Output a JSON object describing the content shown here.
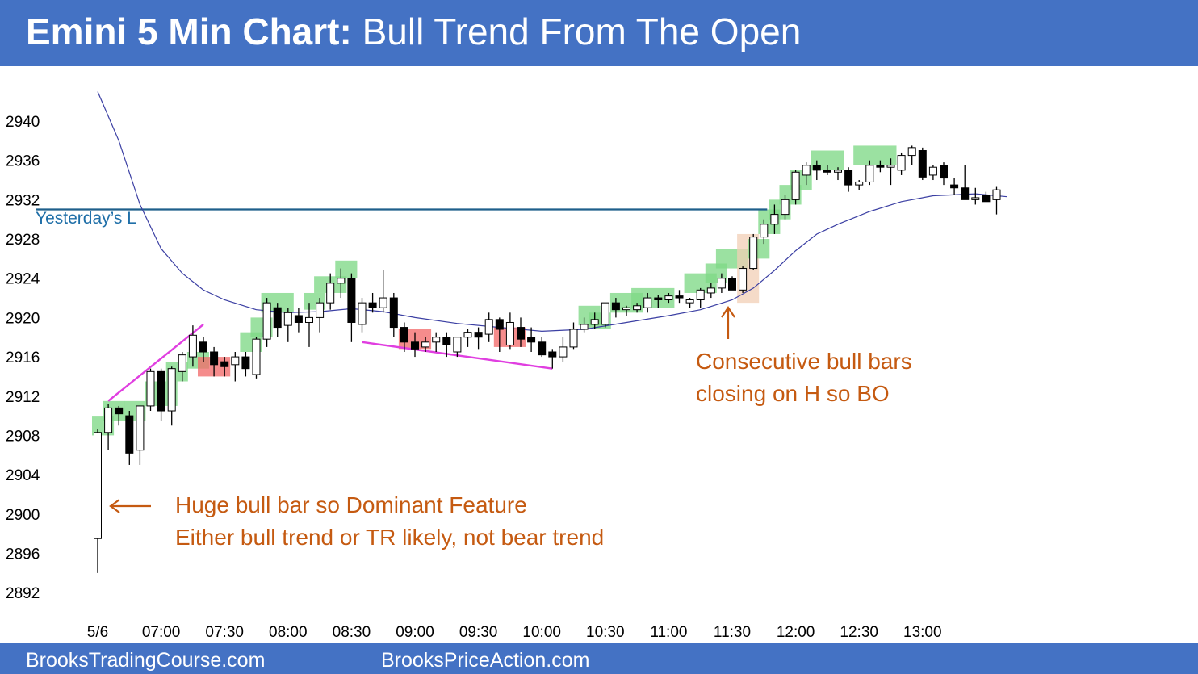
{
  "header": {
    "title_bold": "Emini 5 Min Chart:",
    "title_rest": "Bull Trend From The Open"
  },
  "footer": {
    "left": "BrooksTradingCourse.com",
    "right": "BrooksPriceAction.com"
  },
  "colors": {
    "header_bg": "#4472c4",
    "bull_highlight": "#7fd987",
    "bear_highlight": "#f26b6b",
    "spike_highlight": "#f2cfb5",
    "ema": "#3b3fa3",
    "trendline": "#e03ee0",
    "reference_line": "#1f5f8b",
    "annotation": "#c55a11"
  },
  "annotations": {
    "huge_bar_line1": "Huge bull bar so Dominant Feature",
    "huge_bar_line2": "Either bull trend or TR likely, not bear trend",
    "consecutive_line1": "Consecutive bull bars",
    "consecutive_line2": "closing on H so BO",
    "yesterday_low": "Yesterday’s L"
  },
  "chart_data": {
    "type": "candlestick",
    "title": "Emini 5 Min Chart: Bull Trend From The Open",
    "ylim": [
      2891,
      2942
    ],
    "y_ticks": [
      2892,
      2896,
      2900,
      2904,
      2908,
      2912,
      2916,
      2920,
      2924,
      2928,
      2932,
      2936,
      2940
    ],
    "x_ticks": [
      {
        "label": "5/6",
        "bar": 0
      },
      {
        "label": "07:00",
        "bar": 6
      },
      {
        "label": "07:30",
        "bar": 12
      },
      {
        "label": "08:00",
        "bar": 18
      },
      {
        "label": "08:30",
        "bar": 24
      },
      {
        "label": "09:00",
        "bar": 30
      },
      {
        "label": "09:30",
        "bar": 36
      },
      {
        "label": "10:00",
        "bar": 42
      },
      {
        "label": "10:30",
        "bar": 48
      },
      {
        "label": "11:00",
        "bar": 54
      },
      {
        "label": "11:30",
        "bar": 60
      },
      {
        "label": "12:00",
        "bar": 66
      },
      {
        "label": "12:30",
        "bar": 72
      },
      {
        "label": "13:00",
        "bar": 78
      }
    ],
    "bars": [
      {
        "o": 2897.5,
        "h": 2908.6,
        "l": 2894.0,
        "c": 2908.3
      },
      {
        "o": 2908.3,
        "h": 2911.2,
        "l": 2906.5,
        "c": 2910.8
      },
      {
        "o": 2910.8,
        "h": 2911.0,
        "l": 2909.0,
        "c": 2910.2
      },
      {
        "o": 2910.0,
        "h": 2910.5,
        "l": 2905.0,
        "c": 2906.2
      },
      {
        "o": 2906.5,
        "h": 2911.0,
        "l": 2905.0,
        "c": 2911.0
      },
      {
        "o": 2911.0,
        "h": 2914.8,
        "l": 2910.5,
        "c": 2914.5
      },
      {
        "o": 2914.5,
        "h": 2914.8,
        "l": 2909.5,
        "c": 2910.5
      },
      {
        "o": 2910.5,
        "h": 2915.0,
        "l": 2909.0,
        "c": 2914.8
      },
      {
        "o": 2914.5,
        "h": 2916.5,
        "l": 2913.5,
        "c": 2916.2
      },
      {
        "o": 2916.0,
        "h": 2919.2,
        "l": 2915.0,
        "c": 2918.2
      },
      {
        "o": 2917.5,
        "h": 2918.0,
        "l": 2915.5,
        "c": 2916.5
      },
      {
        "o": 2916.5,
        "h": 2917.0,
        "l": 2914.0,
        "c": 2915.2
      },
      {
        "o": 2915.5,
        "h": 2916.0,
        "l": 2914.0,
        "c": 2915.0
      },
      {
        "o": 2915.2,
        "h": 2916.5,
        "l": 2913.5,
        "c": 2916.0
      },
      {
        "o": 2916.0,
        "h": 2916.5,
        "l": 2914.0,
        "c": 2914.8
      },
      {
        "o": 2914.2,
        "h": 2918.0,
        "l": 2913.8,
        "c": 2917.8
      },
      {
        "o": 2917.8,
        "h": 2922.0,
        "l": 2917.0,
        "c": 2921.5
      },
      {
        "o": 2921.0,
        "h": 2921.5,
        "l": 2918.0,
        "c": 2919.0
      },
      {
        "o": 2919.2,
        "h": 2921.0,
        "l": 2917.5,
        "c": 2920.5
      },
      {
        "o": 2920.2,
        "h": 2921.0,
        "l": 2918.5,
        "c": 2919.5
      },
      {
        "o": 2919.5,
        "h": 2921.5,
        "l": 2917.0,
        "c": 2920.0
      },
      {
        "o": 2920.0,
        "h": 2922.0,
        "l": 2918.5,
        "c": 2921.5
      },
      {
        "o": 2921.5,
        "h": 2924.5,
        "l": 2920.8,
        "c": 2923.5
      },
      {
        "o": 2923.5,
        "h": 2925.0,
        "l": 2922.0,
        "c": 2924.0
      },
      {
        "o": 2924.0,
        "h": 2924.5,
        "l": 2917.5,
        "c": 2919.5
      },
      {
        "o": 2919.3,
        "h": 2922.0,
        "l": 2918.5,
        "c": 2921.5
      },
      {
        "o": 2921.5,
        "h": 2922.5,
        "l": 2920.5,
        "c": 2921.0
      },
      {
        "o": 2921.0,
        "h": 2924.8,
        "l": 2920.5,
        "c": 2922.0
      },
      {
        "o": 2922.0,
        "h": 2922.5,
        "l": 2918.0,
        "c": 2919.0
      },
      {
        "o": 2919.0,
        "h": 2919.5,
        "l": 2916.5,
        "c": 2917.5
      },
      {
        "o": 2917.5,
        "h": 2918.5,
        "l": 2916.0,
        "c": 2916.8
      },
      {
        "o": 2917.0,
        "h": 2918.0,
        "l": 2916.5,
        "c": 2917.5
      },
      {
        "o": 2917.5,
        "h": 2918.5,
        "l": 2916.5,
        "c": 2918.0
      },
      {
        "o": 2918.0,
        "h": 2918.5,
        "l": 2916.0,
        "c": 2917.2
      },
      {
        "o": 2916.5,
        "h": 2918.0,
        "l": 2916.0,
        "c": 2918.0
      },
      {
        "o": 2918.0,
        "h": 2918.8,
        "l": 2917.0,
        "c": 2918.5
      },
      {
        "o": 2918.5,
        "h": 2919.0,
        "l": 2916.8,
        "c": 2918.0
      },
      {
        "o": 2918.3,
        "h": 2920.5,
        "l": 2917.5,
        "c": 2919.8
      },
      {
        "o": 2919.8,
        "h": 2920.0,
        "l": 2916.5,
        "c": 2918.8
      },
      {
        "o": 2917.2,
        "h": 2920.5,
        "l": 2916.8,
        "c": 2919.5
      },
      {
        "o": 2919.0,
        "h": 2920.0,
        "l": 2917.0,
        "c": 2917.8
      },
      {
        "o": 2918.0,
        "h": 2919.0,
        "l": 2916.5,
        "c": 2917.5
      },
      {
        "o": 2917.5,
        "h": 2918.0,
        "l": 2916.0,
        "c": 2916.2
      },
      {
        "o": 2916.5,
        "h": 2916.8,
        "l": 2914.8,
        "c": 2916.0
      },
      {
        "o": 2916.0,
        "h": 2918.0,
        "l": 2915.5,
        "c": 2917.0
      },
      {
        "o": 2917.0,
        "h": 2919.5,
        "l": 2916.8,
        "c": 2918.8
      },
      {
        "o": 2918.8,
        "h": 2920.0,
        "l": 2918.5,
        "c": 2919.3
      },
      {
        "o": 2919.3,
        "h": 2920.5,
        "l": 2918.8,
        "c": 2919.8
      },
      {
        "o": 2919.3,
        "h": 2921.5,
        "l": 2919.0,
        "c": 2921.5
      },
      {
        "o": 2921.5,
        "h": 2922.0,
        "l": 2920.0,
        "c": 2920.8
      },
      {
        "o": 2920.8,
        "h": 2921.2,
        "l": 2920.2,
        "c": 2921.0
      },
      {
        "o": 2920.8,
        "h": 2921.5,
        "l": 2920.5,
        "c": 2921.2
      },
      {
        "o": 2921.0,
        "h": 2922.5,
        "l": 2920.5,
        "c": 2922.0
      },
      {
        "o": 2922.0,
        "h": 2922.3,
        "l": 2921.0,
        "c": 2921.8
      },
      {
        "o": 2921.8,
        "h": 2922.5,
        "l": 2921.5,
        "c": 2922.2
      },
      {
        "o": 2922.2,
        "h": 2922.8,
        "l": 2921.5,
        "c": 2922.0
      },
      {
        "o": 2921.5,
        "h": 2922.0,
        "l": 2921.0,
        "c": 2921.8
      },
      {
        "o": 2921.8,
        "h": 2923.0,
        "l": 2921.0,
        "c": 2922.8
      },
      {
        "o": 2922.5,
        "h": 2923.5,
        "l": 2922.0,
        "c": 2923.0
      },
      {
        "o": 2923.0,
        "h": 2924.5,
        "l": 2922.5,
        "c": 2924.0
      },
      {
        "o": 2924.0,
        "h": 2924.2,
        "l": 2922.8,
        "c": 2922.8
      },
      {
        "o": 2922.8,
        "h": 2925.2,
        "l": 2922.5,
        "c": 2925.0
      },
      {
        "o": 2925.0,
        "h": 2928.5,
        "l": 2924.8,
        "c": 2928.2
      },
      {
        "o": 2928.2,
        "h": 2930.0,
        "l": 2927.5,
        "c": 2929.5
      },
      {
        "o": 2929.5,
        "h": 2931.5,
        "l": 2928.5,
        "c": 2930.5
      },
      {
        "o": 2930.5,
        "h": 2932.5,
        "l": 2930.0,
        "c": 2932.0
      },
      {
        "o": 2932.0,
        "h": 2935.0,
        "l": 2931.5,
        "c": 2934.8
      },
      {
        "o": 2934.5,
        "h": 2935.8,
        "l": 2933.5,
        "c": 2935.5
      },
      {
        "o": 2935.5,
        "h": 2936.0,
        "l": 2934.0,
        "c": 2935.0
      },
      {
        "o": 2935.0,
        "h": 2935.5,
        "l": 2934.5,
        "c": 2934.8
      },
      {
        "o": 2934.8,
        "h": 2935.3,
        "l": 2934.0,
        "c": 2935.0
      },
      {
        "o": 2935.0,
        "h": 2935.3,
        "l": 2932.8,
        "c": 2933.5
      },
      {
        "o": 2933.5,
        "h": 2934.0,
        "l": 2933.0,
        "c": 2933.8
      },
      {
        "o": 2933.8,
        "h": 2936.0,
        "l": 2933.5,
        "c": 2935.5
      },
      {
        "o": 2935.5,
        "h": 2936.0,
        "l": 2934.8,
        "c": 2935.3
      },
      {
        "o": 2935.3,
        "h": 2936.2,
        "l": 2933.5,
        "c": 2935.5
      },
      {
        "o": 2935.0,
        "h": 2936.8,
        "l": 2934.5,
        "c": 2936.5
      },
      {
        "o": 2936.5,
        "h": 2937.5,
        "l": 2935.5,
        "c": 2937.3
      },
      {
        "o": 2937.0,
        "h": 2937.3,
        "l": 2934.0,
        "c": 2934.3
      },
      {
        "o": 2934.5,
        "h": 2935.5,
        "l": 2934.0,
        "c": 2935.3
      },
      {
        "o": 2935.5,
        "h": 2935.8,
        "l": 2933.5,
        "c": 2934.2
      },
      {
        "o": 2933.5,
        "h": 2934.2,
        "l": 2932.5,
        "c": 2933.2
      },
      {
        "o": 2933.2,
        "h": 2935.5,
        "l": 2932.0,
        "c": 2932.0
      },
      {
        "o": 2932.0,
        "h": 2933.2,
        "l": 2931.5,
        "c": 2932.2
      },
      {
        "o": 2932.4,
        "h": 2932.8,
        "l": 2931.8,
        "c": 2931.8
      },
      {
        "o": 2932.0,
        "h": 2933.3,
        "l": 2930.5,
        "c": 2933.0
      }
    ],
    "ema_20": [
      {
        "bar": 0,
        "value": 2943.0
      },
      {
        "bar": 2,
        "value": 2938.0
      },
      {
        "bar": 4,
        "value": 2931.5
      },
      {
        "bar": 6,
        "value": 2927.0
      },
      {
        "bar": 8,
        "value": 2924.5
      },
      {
        "bar": 10,
        "value": 2922.8
      },
      {
        "bar": 12,
        "value": 2921.8
      },
      {
        "bar": 15,
        "value": 2920.8
      },
      {
        "bar": 18,
        "value": 2920.5
      },
      {
        "bar": 21,
        "value": 2920.6
      },
      {
        "bar": 24,
        "value": 2920.9
      },
      {
        "bar": 27,
        "value": 2920.6
      },
      {
        "bar": 30,
        "value": 2920.0
      },
      {
        "bar": 34,
        "value": 2919.4
      },
      {
        "bar": 38,
        "value": 2919.0
      },
      {
        "bar": 42,
        "value": 2918.6
      },
      {
        "bar": 46,
        "value": 2918.8
      },
      {
        "bar": 50,
        "value": 2919.5
      },
      {
        "bar": 54,
        "value": 2920.2
      },
      {
        "bar": 57,
        "value": 2920.8
      },
      {
        "bar": 60,
        "value": 2921.8
      },
      {
        "bar": 62,
        "value": 2923.0
      },
      {
        "bar": 64,
        "value": 2924.8
      },
      {
        "bar": 66,
        "value": 2926.8
      },
      {
        "bar": 68,
        "value": 2928.5
      },
      {
        "bar": 70,
        "value": 2929.5
      },
      {
        "bar": 73,
        "value": 2930.8
      },
      {
        "bar": 76,
        "value": 2931.8
      },
      {
        "bar": 79,
        "value": 2932.4
      },
      {
        "bar": 83,
        "value": 2932.6
      },
      {
        "bar": 86,
        "value": 2932.3
      }
    ],
    "yesterday_low": 2931.0,
    "highlights": [
      {
        "from": 0,
        "to": 1,
        "low": 2908.0,
        "high": 2910.0,
        "kind": "bull"
      },
      {
        "from": 1,
        "to": 2,
        "low": 2909.5,
        "high": 2911.5,
        "kind": "bull"
      },
      {
        "from": 3,
        "to": 4,
        "low": 2909.5,
        "high": 2911.5,
        "kind": "bull"
      },
      {
        "from": 5,
        "to": 7,
        "low": 2911.0,
        "high": 2913.5,
        "kind": "bull"
      },
      {
        "from": 7,
        "to": 8,
        "low": 2913.5,
        "high": 2915.5,
        "kind": "bull"
      },
      {
        "from": 9,
        "to": 10,
        "low": 2914.8,
        "high": 2916.5,
        "kind": "bull"
      },
      {
        "from": 10,
        "to": 12,
        "low": 2914.0,
        "high": 2916.0,
        "kind": "bear"
      },
      {
        "from": 14,
        "to": 15,
        "low": 2916.5,
        "high": 2918.5,
        "kind": "bull"
      },
      {
        "from": 15,
        "to": 16,
        "low": 2918.0,
        "high": 2920.0,
        "kind": "bull"
      },
      {
        "from": 16,
        "to": 18,
        "low": 2920.5,
        "high": 2922.5,
        "kind": "bull"
      },
      {
        "from": 20,
        "to": 21,
        "low": 2920.8,
        "high": 2922.5,
        "kind": "bull"
      },
      {
        "from": 21,
        "to": 23,
        "low": 2922.5,
        "high": 2924.2,
        "kind": "bull"
      },
      {
        "from": 23,
        "to": 24,
        "low": 2924.0,
        "high": 2925.8,
        "kind": "bull"
      },
      {
        "from": 29,
        "to": 31,
        "low": 2916.8,
        "high": 2918.8,
        "kind": "bear"
      },
      {
        "from": 38,
        "to": 40,
        "low": 2917.0,
        "high": 2919.0,
        "kind": "bear"
      },
      {
        "from": 46,
        "to": 47,
        "low": 2919.2,
        "high": 2921.2,
        "kind": "bull"
      },
      {
        "from": 47,
        "to": 48,
        "low": 2918.8,
        "high": 2920.5,
        "kind": "bull"
      },
      {
        "from": 49,
        "to": 51,
        "low": 2920.5,
        "high": 2922.5,
        "kind": "bull"
      },
      {
        "from": 51,
        "to": 54,
        "low": 2921.0,
        "high": 2923.0,
        "kind": "bull"
      },
      {
        "from": 56,
        "to": 58,
        "low": 2922.5,
        "high": 2924.5,
        "kind": "bull"
      },
      {
        "from": 58,
        "to": 59,
        "low": 2923.5,
        "high": 2925.5,
        "kind": "bull"
      },
      {
        "from": 59,
        "to": 61,
        "low": 2925.0,
        "high": 2927.0,
        "kind": "bull"
      },
      {
        "from": 61,
        "to": 62,
        "low": 2921.5,
        "high": 2928.5,
        "kind": "spike"
      },
      {
        "from": 62,
        "to": 63,
        "low": 2926.0,
        "high": 2928.0,
        "kind": "bull"
      },
      {
        "from": 63,
        "to": 64,
        "low": 2928.5,
        "high": 2931.0,
        "kind": "bull"
      },
      {
        "from": 64,
        "to": 65,
        "low": 2930.0,
        "high": 2932.0,
        "kind": "bull"
      },
      {
        "from": 65,
        "to": 66,
        "low": 2931.5,
        "high": 2933.5,
        "kind": "bull"
      },
      {
        "from": 66,
        "to": 67,
        "low": 2933.0,
        "high": 2935.0,
        "kind": "bull"
      },
      {
        "from": 68,
        "to": 70,
        "low": 2935.0,
        "high": 2937.0,
        "kind": "bull"
      },
      {
        "from": 72,
        "to": 75,
        "low": 2935.5,
        "high": 2937.5,
        "kind": "bull"
      }
    ],
    "trendlines": [
      {
        "bar1": 1,
        "price1": 2911.5,
        "bar2": 10,
        "price2": 2919.3
      },
      {
        "bar1": 25,
        "price1": 2917.5,
        "bar2": 43,
        "price2": 2914.8
      }
    ]
  }
}
